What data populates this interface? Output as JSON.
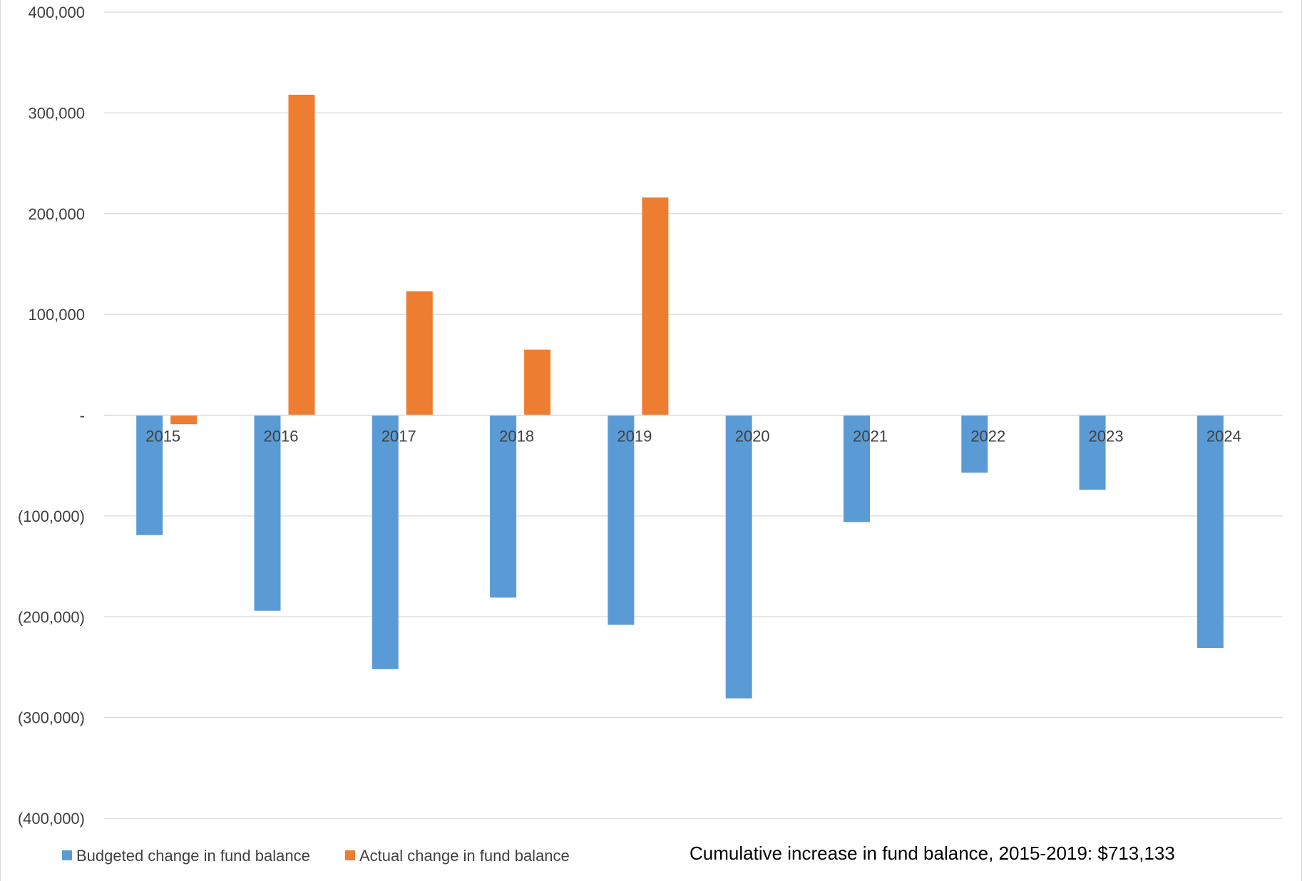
{
  "chart_data": {
    "type": "bar",
    "categories": [
      "2015",
      "2016",
      "2017",
      "2018",
      "2019",
      "2020",
      "2021",
      "2022",
      "2023",
      "2024"
    ],
    "series": [
      {
        "name": "Budgeted change in fund balance",
        "color": "#5b9bd5",
        "values": [
          -119000,
          -194000,
          -252000,
          -181000,
          -208000,
          -281000,
          -106000,
          -57000,
          -74000,
          -231000
        ]
      },
      {
        "name": "Actual change in fund balance",
        "color": "#ed7d31",
        "values": [
          -9000,
          318000,
          123000,
          65000,
          216000,
          null,
          null,
          null,
          null,
          null
        ]
      }
    ],
    "ylim": [
      -400000,
      400000
    ],
    "yticks": [
      400000,
      300000,
      200000,
      100000,
      0,
      -100000,
      -200000,
      -300000,
      -400000
    ],
    "ytick_labels": [
      "400,000",
      "300,000",
      "200,000",
      "100,000",
      "-",
      "(100,000)",
      "(200,000)",
      "(300,000)",
      "(400,000)"
    ],
    "grid": true,
    "gridline_color": "#d9d9d9",
    "legend_position": "bottom-left",
    "annotation": "Cumulative increase in fund balance, 2015-2019:  $713,133",
    "title": "",
    "xlabel": "",
    "ylabel": ""
  }
}
